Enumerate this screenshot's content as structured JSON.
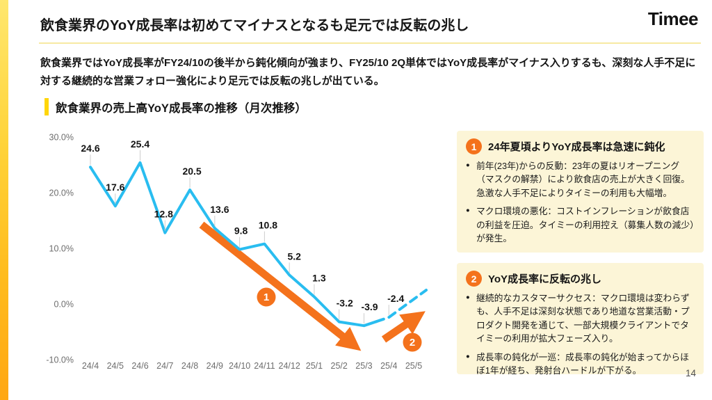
{
  "brand": {
    "logo_text": "Timee"
  },
  "page": {
    "number": "14"
  },
  "header": {
    "title": "飲食業界のYoY成長率は初めてマイナスとなるも足元では反転の兆し",
    "lead": "飲食業界ではYoY成長率がFY24/10の後半から鈍化傾向が強まり、FY25/10 2Q単体ではYoY成長率がマイナス入りするも、深刻な人手不足に対する継続的な営業フォロー強化により足元では反転の兆しが出ている。"
  },
  "section": {
    "title": "飲食業界の売上高YoY成長率の推移（月次推移）"
  },
  "chart_data": {
    "type": "line",
    "title": "飲食業界の売上高YoY成長率の推移（月次推移）",
    "categories": [
      "24/4",
      "24/5",
      "24/6",
      "24/7",
      "24/8",
      "24/9",
      "24/10",
      "24/11",
      "24/12",
      "25/1",
      "25/2",
      "25/3",
      "25/4",
      "25/5"
    ],
    "series": [
      {
        "name": "売上高YoY成長率(%)",
        "values": [
          24.6,
          17.6,
          25.4,
          12.8,
          20.5,
          13.6,
          9.8,
          10.8,
          5.2,
          1.3,
          -3.2,
          -3.9,
          -2.4
        ]
      }
    ],
    "projection": {
      "style": "dashed",
      "from_category": "25/4",
      "to_category": "25/5",
      "approx_end_value": 2.5
    },
    "y_axis": {
      "ticks": [
        {
          "label": "30.0%",
          "value": 30
        },
        {
          "label": "20.0%",
          "value": 20
        },
        {
          "label": "10.0%",
          "value": 10
        },
        {
          "label": "0.0%",
          "value": 0
        },
        {
          "label": "-10.0%",
          "value": -10
        }
      ],
      "range": [
        -10,
        30
      ]
    },
    "grid": false,
    "legend": "none",
    "line_color": "#29bdf0",
    "accent_color": "#f4721c",
    "label_dx": [
      0,
      0,
      0,
      -2,
      3,
      7,
      2,
      5,
      7,
      7,
      8,
      8,
      10
    ],
    "annotations": [
      {
        "label": "1",
        "meaning": "急速な鈍化（下降トレンド矢印）",
        "direction": "down"
      },
      {
        "label": "2",
        "meaning": "反転の兆し（上昇トレンド矢印）",
        "direction": "up"
      }
    ]
  },
  "callouts": [
    {
      "badge": "1",
      "title": "24年夏頃よりYoY成長率は急速に鈍化",
      "bullets": [
        "前年(23年)からの反動：23年の夏はリオープニング（マスクの解禁）により飲食店の売上が大きく回復。急激な人手不足によりタイミーの利用も大幅増。",
        "マクロ環境の悪化：コストインフレーションが飲食店の利益を圧迫。タイミーの利用控え（募集人数の減少）が発生。"
      ]
    },
    {
      "badge": "2",
      "title": "YoY成長率に反転の兆し",
      "bullets": [
        "継続的なカスタマーサクセス：マクロ環境は変わらずも、人手不足は深刻な状態であり地道な営業活動・プロダクト開発を通じて、一部大規模クライアントでタイミーの利用が拡大フェーズ入り。",
        "成長率の鈍化が一巡：成長率の鈍化が始まってからほぼ1年が経ち、発射台ハードルが下がる。"
      ]
    }
  ],
  "colors": {
    "line": "#29bdf0",
    "orange": "#f4721c",
    "yellow_bar": "#ffd60a",
    "callout_bg": "#fcf5d7",
    "divider": "#f7e9a2"
  }
}
